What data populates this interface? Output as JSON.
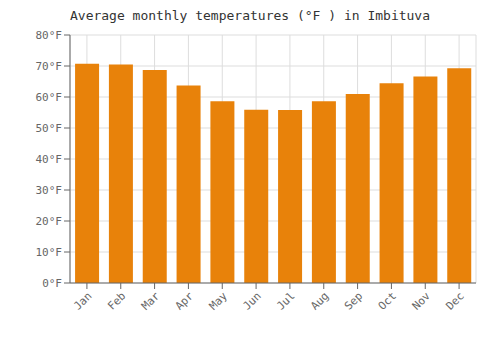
{
  "chart_data": {
    "type": "bar",
    "title": "Average monthly temperatures (°F ) in Imbituva",
    "categories": [
      "Jan",
      "Feb",
      "Mar",
      "Apr",
      "May",
      "Jun",
      "Jul",
      "Aug",
      "Sep",
      "Oct",
      "Nov",
      "Dec"
    ],
    "values": [
      70.7,
      70.5,
      68.7,
      63.7,
      58.6,
      55.9,
      55.8,
      58.6,
      61.0,
      64.4,
      66.6,
      69.3
    ],
    "color": "#E8820A",
    "ylim": [
      0,
      80
    ],
    "yticks": [
      {
        "value": 0,
        "label": "0°F"
      },
      {
        "value": 10,
        "label": "10°F"
      },
      {
        "value": 20,
        "label": "20°F"
      },
      {
        "value": 30,
        "label": "30°F"
      },
      {
        "value": 40,
        "label": "40°F"
      },
      {
        "value": 50,
        "label": "50°F"
      },
      {
        "value": 60,
        "label": "60°F"
      },
      {
        "value": 70,
        "label": "70°F"
      },
      {
        "value": 80,
        "label": "80°F"
      }
    ],
    "grid": true
  }
}
